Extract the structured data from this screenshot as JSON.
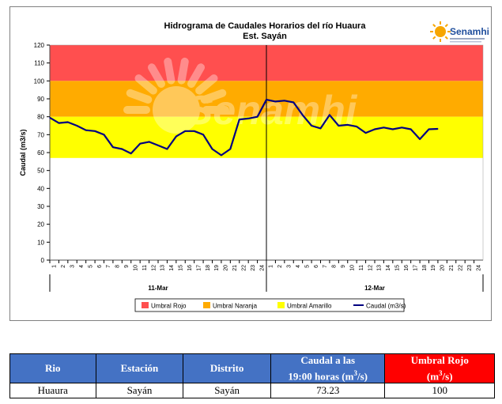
{
  "chart_data": {
    "type": "line",
    "title": "Hidrograma de Caudales Horarios del río Huaura",
    "subtitle": "Est. Sayán",
    "ylabel": "Caudal  (m3/s)",
    "ylim": [
      0,
      120
    ],
    "yticks": [
      0,
      10,
      20,
      30,
      40,
      50,
      60,
      70,
      80,
      90,
      100,
      110,
      120
    ],
    "x_tick_labels": [
      "1",
      "2",
      "3",
      "4",
      "5",
      "6",
      "7",
      "8",
      "9",
      "10",
      "11",
      "12",
      "13",
      "14",
      "15",
      "16",
      "17",
      "18",
      "19",
      "20",
      "21",
      "22",
      "23",
      "24",
      "1",
      "2",
      "3",
      "4",
      "5",
      "6",
      "7",
      "8",
      "9",
      "10",
      "11",
      "12",
      "13",
      "14",
      "15",
      "16",
      "17",
      "18",
      "19",
      "20",
      "21",
      "22",
      "23",
      "24"
    ],
    "day_labels": [
      "11-Mar",
      "12-Mar"
    ],
    "thresholds": [
      {
        "name": "Umbral Rojo",
        "from": 100,
        "to": 120,
        "color": "#ff4f4f"
      },
      {
        "name": "Umbral Naranja",
        "from": 80,
        "to": 100,
        "color": "#ffab00"
      },
      {
        "name": "Umbral Amarillo",
        "from": 57,
        "to": 80,
        "color": "#ffff00"
      }
    ],
    "series": [
      {
        "name": "Caudal (m3/s)",
        "color": "#000080",
        "x": [
          0,
          1,
          2,
          3,
          4,
          5,
          6,
          7,
          8,
          9,
          10,
          11,
          12,
          13,
          14,
          15,
          16,
          17,
          18,
          19,
          20,
          21,
          22,
          23,
          24,
          25,
          26,
          27,
          28,
          29,
          30,
          31,
          32,
          33,
          34,
          35,
          36,
          37,
          38,
          39,
          40,
          41,
          42,
          43
        ],
        "values": [
          79.5,
          76.5,
          77,
          75,
          72.5,
          72,
          70,
          63,
          62,
          59.5,
          65,
          66,
          64,
          62,
          69,
          72,
          72,
          70,
          62,
          58.5,
          62,
          78.5,
          79,
          80,
          89.5,
          88.5,
          89,
          88,
          81,
          75,
          73.5,
          81,
          75,
          75.5,
          74.5,
          71,
          73,
          74,
          73,
          74,
          73,
          67.5,
          73,
          73.23
        ]
      }
    ],
    "legend": [
      {
        "label": "Umbral Rojo",
        "color": "#ff4f4f",
        "kind": "box"
      },
      {
        "label": "Umbral Naranja",
        "color": "#ffab00",
        "kind": "box"
      },
      {
        "label": "Umbral Amarillo",
        "color": "#ffff00",
        "kind": "box"
      },
      {
        "label": "Caudal (m3/s)",
        "color": "#000080",
        "kind": "line"
      }
    ],
    "legend_position": "bottom",
    "watermark": "Senamhi",
    "logo_text": "Senamhi"
  },
  "table": {
    "headers": [
      "Rio",
      "Estación",
      "Distrito",
      "Caudal a las 19:00 horas (m³/s)",
      "Umbral Rojo (m³/s)"
    ],
    "header_caudal_line1": "Caudal a las",
    "header_caudal_line2": "19:00 horas (m",
    "header_caudal_sup": "3",
    "header_caudal_end": "/s)",
    "header_umbral_line1": "Umbral Rojo",
    "header_umbral_line2": "(m",
    "header_umbral_sup": "3",
    "header_umbral_end": "/s)",
    "row": [
      "Huaura",
      "Sayán",
      "Sayán",
      "73.23",
      "100"
    ]
  }
}
